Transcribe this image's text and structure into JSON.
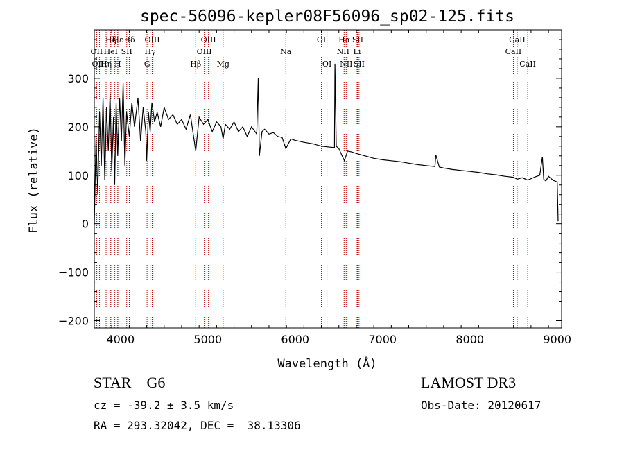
{
  "chart_data": {
    "type": "line",
    "title": "spec-56096-kepler08F56096_sp02-125.fits",
    "xlabel": "Wavelength (Å)",
    "ylabel": "Flux (relative)",
    "xlim": [
      3700,
      9050
    ],
    "ylim": [
      -215,
      400
    ],
    "x_ticks": [
      4000,
      5000,
      6000,
      7000,
      8000,
      9000
    ],
    "y_ticks": [
      -200,
      -100,
      0,
      100,
      200,
      300
    ],
    "line_color": "#000000",
    "marker_color": "#c00000",
    "series": [
      {
        "name": "spectrum",
        "x": [
          3700,
          3720,
          3740,
          3760,
          3780,
          3800,
          3820,
          3840,
          3860,
          3880,
          3900,
          3920,
          3933,
          3950,
          3968,
          3990,
          4010,
          4030,
          4050,
          4070,
          4101,
          4130,
          4160,
          4200,
          4230,
          4260,
          4290,
          4300,
          4320,
          4340,
          4360,
          4390,
          4420,
          4460,
          4500,
          4550,
          4600,
          4650,
          4700,
          4750,
          4800,
          4861,
          4900,
          4950,
          5000,
          5050,
          5100,
          5150,
          5175,
          5200,
          5250,
          5300,
          5350,
          5400,
          5450,
          5500,
          5560,
          5577,
          5590,
          5620,
          5650,
          5700,
          5750,
          5800,
          5850,
          5893,
          5950,
          6000,
          6100,
          6200,
          6300,
          6400,
          6450,
          6455,
          6470,
          6500,
          6563,
          6600,
          6650,
          6700,
          6800,
          6900,
          7000,
          7100,
          7200,
          7300,
          7400,
          7500,
          7600,
          7610,
          7650,
          7700,
          7800,
          7900,
          8000,
          8100,
          8200,
          8300,
          8400,
          8498,
          8542,
          8600,
          8662,
          8700,
          8750,
          8800,
          8830,
          8845,
          8870,
          8900,
          8950,
          9000,
          9010
        ],
        "y": [
          0,
          180,
          60,
          230,
          120,
          260,
          90,
          240,
          150,
          270,
          110,
          220,
          80,
          250,
          140,
          260,
          170,
          290,
          120,
          230,
          180,
          250,
          200,
          260,
          170,
          240,
          190,
          130,
          230,
          190,
          250,
          210,
          230,
          200,
          240,
          215,
          225,
          205,
          215,
          195,
          225,
          150,
          220,
          205,
          215,
          190,
          210,
          200,
          175,
          205,
          195,
          210,
          190,
          200,
          180,
          200,
          185,
          300,
          140,
          190,
          195,
          185,
          188,
          180,
          178,
          155,
          175,
          172,
          168,
          165,
          160,
          158,
          157,
          330,
          160,
          155,
          130,
          150,
          148,
          145,
          140,
          135,
          132,
          130,
          128,
          125,
          122,
          120,
          118,
          142,
          117,
          115,
          112,
          110,
          108,
          106,
          103,
          101,
          98,
          96,
          92,
          95,
          90,
          93,
          97,
          100,
          138,
          92,
          88,
          98,
          90,
          86,
          5
        ]
      }
    ],
    "line_markers": [
      {
        "name": "Hε",
        "x": 3970,
        "row": 1
      },
      {
        "name": "OII",
        "x": 3727,
        "row": 2
      },
      {
        "name": "OIII",
        "x": 3760,
        "row": 3
      },
      {
        "name": "Hζ",
        "x": 3889,
        "row": 1
      },
      {
        "name": "K",
        "x": 3933,
        "row": 1
      },
      {
        "name": "HeI",
        "x": 3889,
        "row": 2
      },
      {
        "name": "SII",
        "x": 4071,
        "row": 2
      },
      {
        "name": "Hη",
        "x": 3835,
        "row": 3
      },
      {
        "name": "H",
        "x": 3968,
        "row": 3
      },
      {
        "name": "Hδ",
        "x": 4101,
        "row": 1
      },
      {
        "name": "OIII",
        "x": 4363,
        "row": 1
      },
      {
        "name": "Hγ",
        "x": 4340,
        "row": 2
      },
      {
        "name": "G",
        "x": 4304,
        "row": 3
      },
      {
        "name": "Hβ",
        "x": 4861,
        "row": 3
      },
      {
        "name": "OIII",
        "x": 5007,
        "row": 1
      },
      {
        "name": "OIII",
        "x": 4959,
        "row": 2
      },
      {
        "name": "Mg",
        "x": 5175,
        "row": 3
      },
      {
        "name": "Na",
        "x": 5893,
        "row": 2
      },
      {
        "name": "OI",
        "x": 6300,
        "row": 1
      },
      {
        "name": "OI",
        "x": 6364,
        "row": 3
      },
      {
        "name": "Hα",
        "x": 6563,
        "row": 1
      },
      {
        "name": "SII",
        "x": 6716,
        "row": 1
      },
      {
        "name": "NII",
        "x": 6548,
        "row": 2
      },
      {
        "name": "Li",
        "x": 6708,
        "row": 2
      },
      {
        "name": "NII",
        "x": 6584,
        "row": 3
      },
      {
        "name": "SII",
        "x": 6731,
        "row": 3
      },
      {
        "name": "CaII",
        "x": 8542,
        "row": 1
      },
      {
        "name": "CaII",
        "x": 8498,
        "row": 2
      },
      {
        "name": "CaII",
        "x": 8662,
        "row": 3
      }
    ]
  },
  "info": {
    "class": "STAR    G6",
    "survey": "LAMOST DR3",
    "cz": "cz = -39.2 ± 3.5 km/s",
    "obs_date": "Obs-Date: 20120617",
    "coords": "RA = 293.32042, DEC =  38.13306"
  }
}
